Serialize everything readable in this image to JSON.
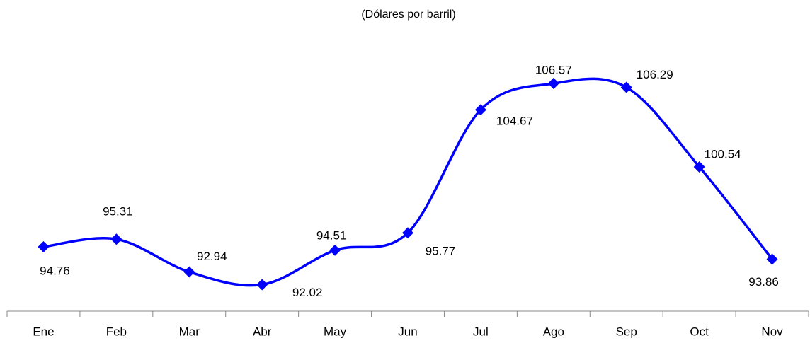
{
  "chart_data": {
    "type": "line",
    "subtitle": "(Dólares por barril)",
    "categories": [
      "Ene",
      "Feb",
      "Mar",
      "Abr",
      "May",
      "Jun",
      "Jul",
      "Ago",
      "Sep",
      "Oct",
      "Nov"
    ],
    "values": [
      94.76,
      95.31,
      92.94,
      92.02,
      94.51,
      95.77,
      104.67,
      106.57,
      106.29,
      100.54,
      93.86
    ],
    "color": "#0000ff",
    "ylim": [
      90,
      110
    ]
  }
}
